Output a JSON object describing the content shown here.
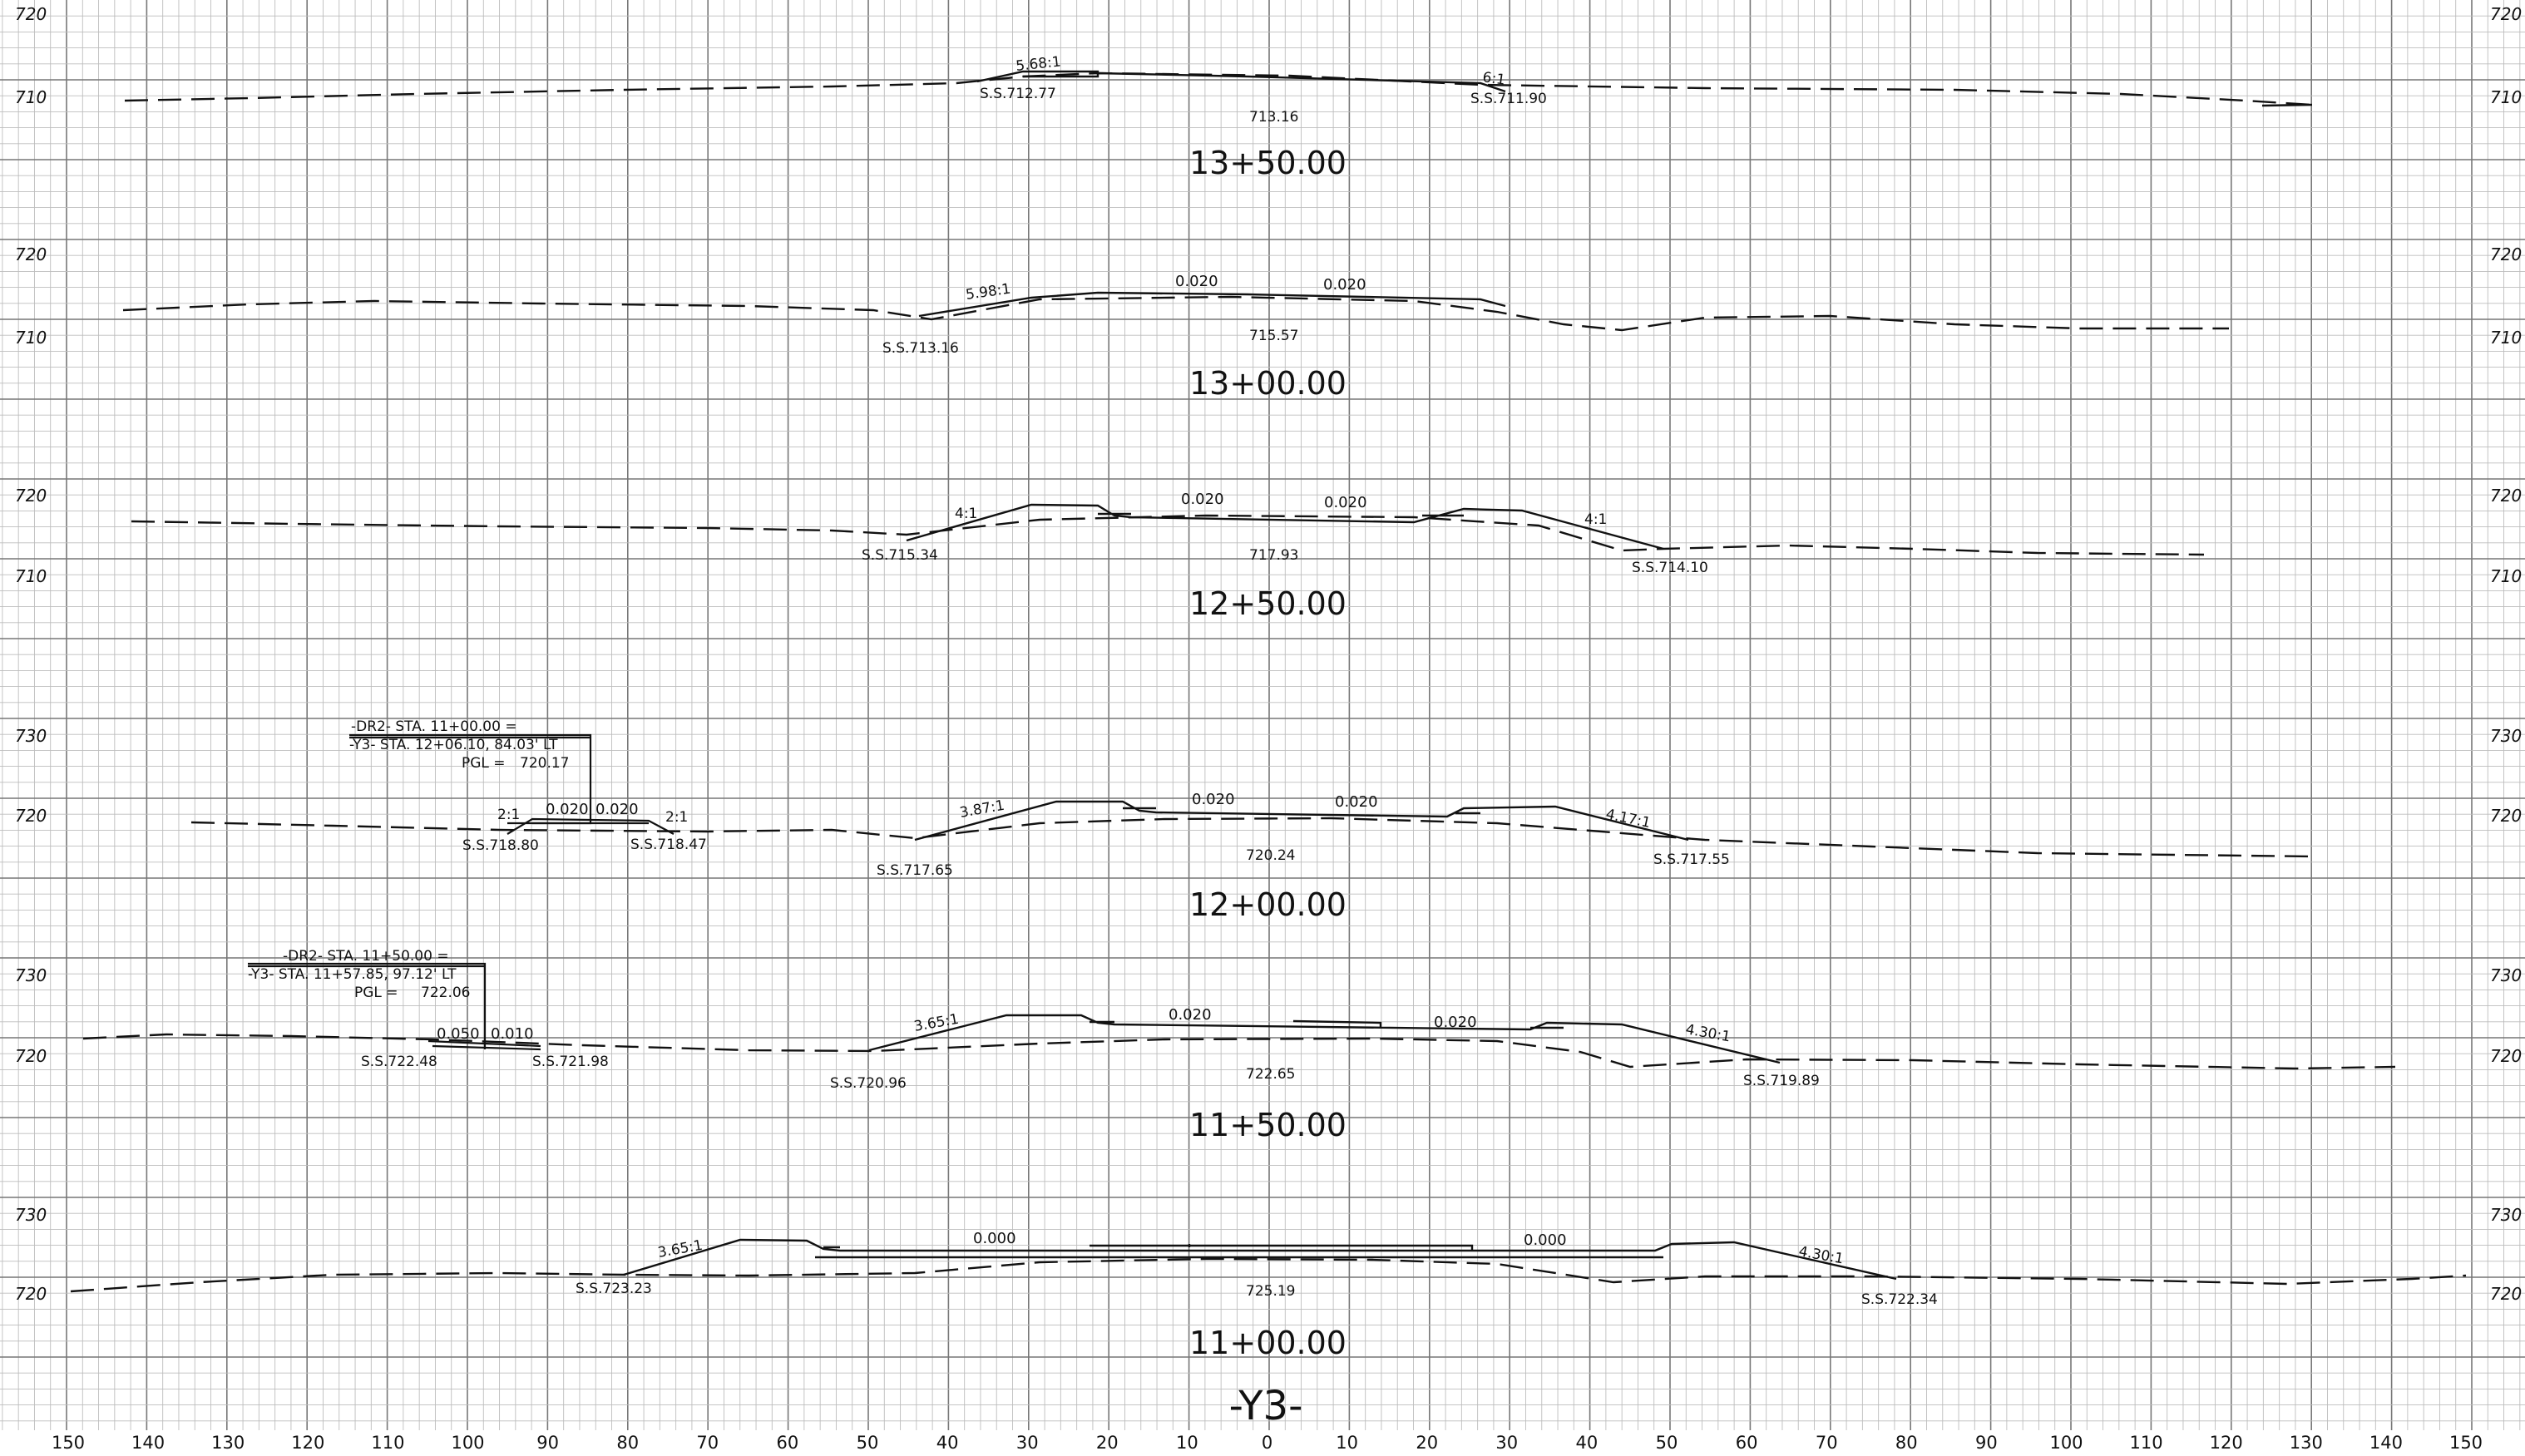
{
  "sheet": {
    "title": "-Y3-",
    "offset_ticks": [
      "150",
      "140",
      "130",
      "120",
      "110",
      "100",
      "90",
      "80",
      "70",
      "60",
      "50",
      "40",
      "30",
      "20",
      "10",
      "0",
      "10",
      "20",
      "30",
      "40",
      "50",
      "60",
      "70",
      "80",
      "90",
      "100",
      "110",
      "120",
      "130",
      "140",
      "150"
    ]
  },
  "sections": [
    {
      "station": "13+50.00",
      "elev_top": "720",
      "elev_mid": "710",
      "center_elev": "713.16",
      "grades": [],
      "slopes": [
        "5.68:1",
        "6:1"
      ],
      "slope_stakes": [
        "S.S.712.77",
        "S.S.711.90"
      ],
      "detail": null
    },
    {
      "station": "13+00.00",
      "elev_top": "720",
      "elev_mid": "710",
      "center_elev": "715.57",
      "grades": [
        "0.020",
        "0.020"
      ],
      "slopes": [
        "5.98:1"
      ],
      "slope_stakes": [
        "S.S.713.16"
      ],
      "detail": null
    },
    {
      "station": "12+50.00",
      "elev_top": "720",
      "elev_mid": "710",
      "center_elev": "717.93",
      "grades": [
        "0.020",
        "0.020"
      ],
      "slopes": [
        "4:1",
        "4:1"
      ],
      "slope_stakes": [
        "S.S.715.34",
        "S.S.714.10"
      ],
      "detail": null
    },
    {
      "station": "12+00.00",
      "elev_top": "730",
      "elev_mid": "720",
      "center_elev": "720.24",
      "grades": [
        "0.020",
        "0.020"
      ],
      "slopes": [
        "3.87:1",
        "4.17:1"
      ],
      "slope_stakes": [
        "S.S.717.65",
        "S.S.717.55"
      ],
      "detail": {
        "line1": "-DR2- STA. 11+00.00 =",
        "line2": "-Y3- STA. 12+06.10, 84.03' LT",
        "pgl_label": "PGL =",
        "pgl_value": "720.17",
        "grades": [
          "0.020",
          "0.020"
        ],
        "slopes": [
          "2:1",
          "2:1"
        ],
        "slope_stakes": [
          "S.S.718.80",
          "S.S.718.47"
        ]
      }
    },
    {
      "station": "11+50.00",
      "elev_top": "730",
      "elev_mid": "720",
      "center_elev": "722.65",
      "grades": [
        "0.020",
        "0.020"
      ],
      "slopes": [
        "3.65:1",
        "4.30:1"
      ],
      "slope_stakes": [
        "S.S.720.96",
        "S.S.719.89"
      ],
      "detail": {
        "line1": "-DR2- STA. 11+50.00 =",
        "line2": "-Y3- STA. 11+57.85, 97.12' LT",
        "pgl_label": "PGL =",
        "pgl_value": "722.06",
        "grades": [
          "0.050",
          "0.010"
        ],
        "slopes": [],
        "slope_stakes": [
          "S.S.722.48",
          "S.S.721.98"
        ]
      }
    },
    {
      "station": "11+00.00",
      "elev_top": "730",
      "elev_mid": "720",
      "center_elev": "725.19",
      "grades": [
        "0.000",
        "0.000"
      ],
      "slopes": [
        "3.65:1",
        "4.30:1"
      ],
      "slope_stakes": [
        "S.S.723.23",
        "S.S.722.34"
      ],
      "detail": null
    }
  ]
}
